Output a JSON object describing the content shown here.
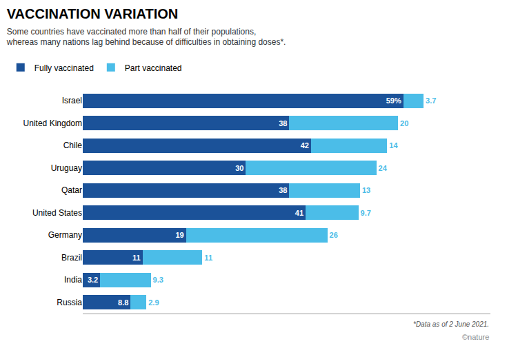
{
  "chart_data": {
    "type": "bar",
    "orientation": "horizontal",
    "stacked": true,
    "title": "VACCINATION VARIATION",
    "subtitle": "Some countries have vaccinated more than half of their populations,\nwhereas many nations lag behind because of difficulties in obtaining doses*.",
    "annotations": [
      "*Data as of 2 June 2021.",
      "©nature"
    ],
    "categories": [
      "Israel",
      "United Kingdom",
      "Chile",
      "Uruguay",
      "Qatar",
      "United States",
      "Germany",
      "Brazil",
      "India",
      "Russia"
    ],
    "series": [
      {
        "name": "Fully vaccinated",
        "color": "#1b5299",
        "values": [
          59,
          38,
          42,
          30,
          38,
          41,
          19,
          11,
          3.2,
          8.8
        ],
        "value_labels": [
          "59%",
          "38",
          "42",
          "30",
          "38",
          "41",
          "19",
          "11",
          "3.2",
          "8.8"
        ]
      },
      {
        "name": "Part vaccinated",
        "color": "#4bbde8",
        "values": [
          3.7,
          20,
          14,
          24,
          13,
          9.7,
          26,
          11,
          9.3,
          2.9
        ]
      }
    ],
    "xlim": [
      0,
      75
    ],
    "data_labels": true,
    "tick_labels": "y",
    "grid": false,
    "legend": "top left"
  }
}
